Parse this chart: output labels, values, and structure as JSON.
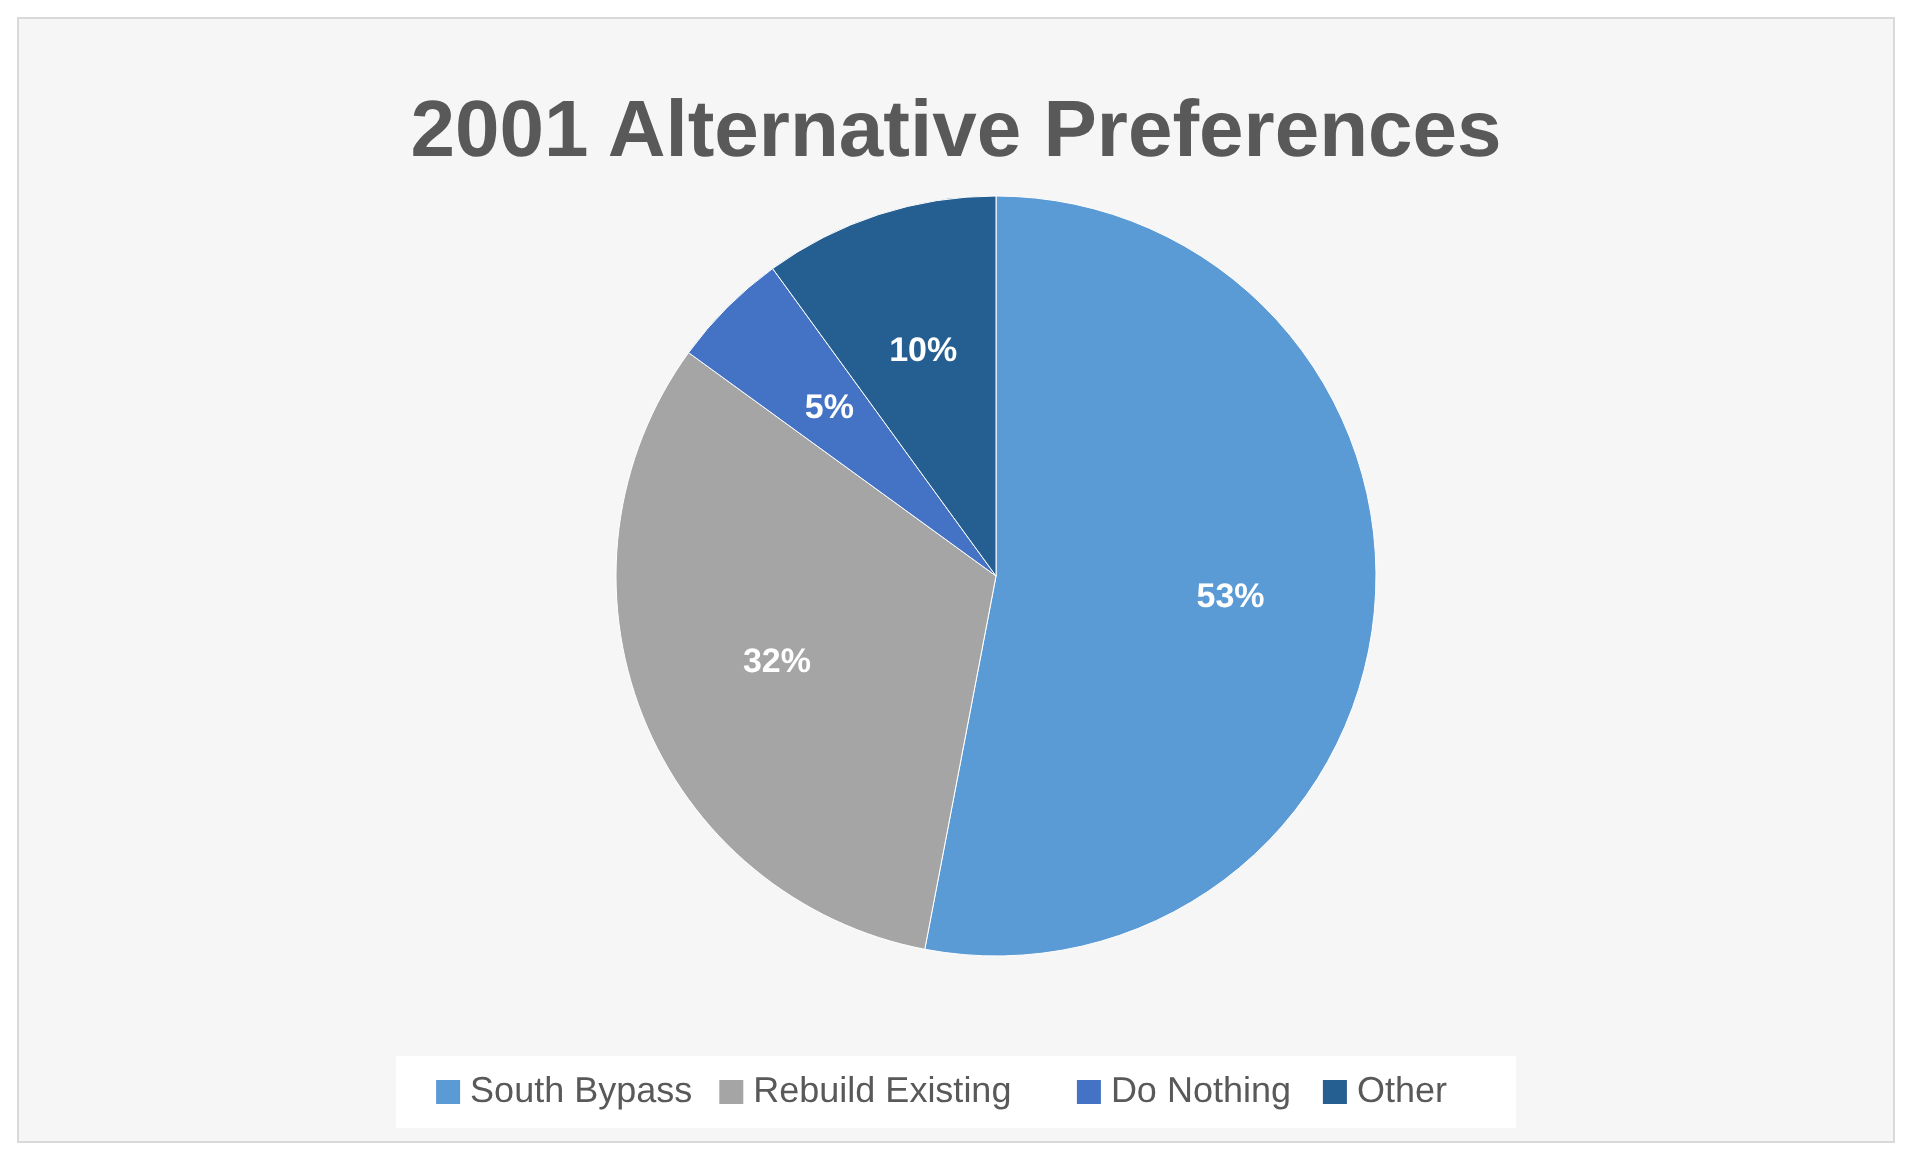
{
  "chart_data": {
    "type": "pie",
    "title": "2001 Alternative Preferences",
    "categories": [
      "South Bypass",
      "Rebuild Existing",
      "Do Nothing",
      "Other"
    ],
    "values": [
      53,
      32,
      5,
      10
    ],
    "colors": [
      "#5b9bd5",
      "#a5a5a5",
      "#4472c4",
      "#255e91"
    ],
    "value_labels": [
      "53%",
      "32%",
      "5%",
      "10%"
    ],
    "legend": "bottom"
  }
}
